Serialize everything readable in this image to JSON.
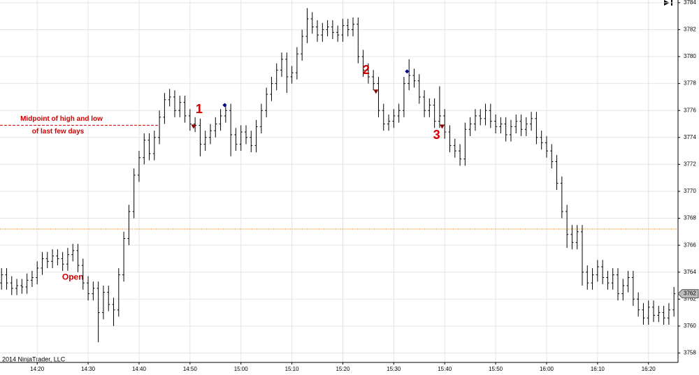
{
  "chart_data": {
    "type": "ohlc",
    "copyright": "2014 NinjaTrader, LLC",
    "color": "#000000",
    "x": [
      853,
      854,
      855,
      856,
      857,
      858,
      859,
      860,
      861,
      862,
      863,
      864,
      865,
      866,
      867,
      868,
      869,
      870,
      871,
      872,
      873,
      874,
      875,
      876,
      877,
      878,
      879,
      880,
      881,
      882,
      883,
      884,
      885,
      886,
      887,
      888,
      889,
      890,
      891,
      892,
      893,
      894,
      895,
      896,
      897,
      898,
      899,
      900,
      901,
      902,
      903,
      904,
      905,
      906,
      907,
      908,
      909,
      910,
      911,
      912,
      913,
      914,
      915,
      916,
      917,
      918,
      919,
      920,
      921,
      922,
      923,
      924,
      925,
      926,
      927,
      928,
      929,
      930,
      931,
      932,
      933,
      934,
      935,
      936,
      937,
      938,
      939,
      940,
      941,
      942,
      943,
      944,
      945,
      946,
      947,
      948,
      949,
      950,
      951,
      952,
      953,
      954,
      955,
      956,
      957,
      958,
      959,
      960,
      961,
      962,
      963,
      964,
      965,
      966,
      967,
      968,
      969,
      970,
      971,
      972,
      973,
      974,
      975,
      976,
      977,
      978,
      979,
      980,
      981,
      982,
      983,
      984,
      985
    ],
    "open": [
      3763.2,
      3763.8,
      3763.2,
      3762.8,
      3763,
      3762.9,
      3763.4,
      3763.6,
      3764.3,
      3765,
      3764.8,
      3765.2,
      3765,
      3764.6,
      3765.3,
      3765.6,
      3764.5,
      3763.2,
      3762.4,
      3762.8,
      3761,
      3762.5,
      3761.6,
      3761.2,
      3763.8,
      3766.5,
      3768.5,
      3771.2,
      3772.5,
      3773.8,
      3772.8,
      3774,
      3775.5,
      3776.8,
      3777,
      3776,
      3776.6,
      3775.6,
      3775,
      3774.9,
      3773.5,
      3774,
      3774.5,
      3775,
      3775.6,
      3776,
      3774.2,
      3773.5,
      3774.4,
      3774,
      3773.4,
      3774.8,
      3776,
      3777.2,
      3778,
      3779,
      3779.8,
      3778.5,
      3778.8,
      3780.2,
      3781.5,
      3782.8,
      3782.2,
      3781.6,
      3782,
      3782.2,
      3781.8,
      3781.6,
      3782.3,
      3782,
      3782.4,
      3780,
      3779,
      3778.5,
      3778,
      3776,
      3775,
      3775.2,
      3775.6,
      3776,
      3778,
      3778.6,
      3778.2,
      3777,
      3776,
      3776.4,
      3775.2,
      3775.6,
      3774.4,
      3773.4,
      3773,
      3772.4,
      3774.6,
      3775,
      3775.6,
      3775.4,
      3776,
      3775.2,
      3774.8,
      3775,
      3774.2,
      3774.8,
      3775.2,
      3774.6,
      3775,
      3775.4,
      3774,
      3773.6,
      3773,
      3772.2,
      3770.6,
      3768.5,
      3766.8,
      3766.2,
      3767,
      3764,
      3763.2,
      3763.8,
      3764.4,
      3763.6,
      3763.2,
      3763.8,
      3762.4,
      3763,
      3763.6,
      3762,
      3761.2,
      3760.6,
      3761.4,
      3760.8,
      3761,
      3760.6,
      3761.2
    ],
    "high": [
      3764.3,
      3764.3,
      3763.7,
      3763.5,
      3763.5,
      3763.9,
      3764.1,
      3764.8,
      3765.5,
      3765.5,
      3765.7,
      3765.7,
      3765.5,
      3765.8,
      3766.1,
      3766.1,
      3765,
      3763.7,
      3763.3,
      3763.3,
      3763,
      3763,
      3762.1,
      3764.3,
      3767,
      3769,
      3771.7,
      3773,
      3774.3,
      3774.3,
      3774.5,
      3776,
      3777.3,
      3777.6,
      3777.5,
      3777.1,
      3777.1,
      3776.1,
      3775.5,
      3775.4,
      3774.5,
      3775,
      3775.5,
      3776.1,
      3776.5,
      3776.5,
      3774.7,
      3774.9,
      3774.9,
      3774.5,
      3775.3,
      3776.5,
      3777.7,
      3778.5,
      3779.5,
      3780.3,
      3780.3,
      3779.3,
      3780.7,
      3782,
      3783.6,
      3783.3,
      3782.7,
      3782.5,
      3782.7,
      3782.7,
      3782.3,
      3782.8,
      3782.8,
      3782.9,
      3782.9,
      3780.5,
      3779.5,
      3779,
      3778.5,
      3776.5,
      3775.7,
      3776.1,
      3776.5,
      3778.5,
      3779.8,
      3779.1,
      3778.7,
      3777.5,
      3776.9,
      3776.9,
      3777.8,
      3776.1,
      3774.9,
      3773.9,
      3773.5,
      3775.1,
      3775.5,
      3776.1,
      3776.1,
      3776.5,
      3776.5,
      3775.7,
      3775.5,
      3775.5,
      3775.3,
      3775.7,
      3775.7,
      3775.5,
      3775.9,
      3775.9,
      3774.5,
      3774.1,
      3773.5,
      3772.7,
      3771.1,
      3769,
      3767.5,
      3767.5,
      3767.5,
      3764.5,
      3764.3,
      3764.9,
      3764.9,
      3764.1,
      3764.3,
      3764.3,
      3763.5,
      3764.1,
      3764.1,
      3762.5,
      3761.7,
      3761.9,
      3761.9,
      3761.5,
      3761.5,
      3761.7,
      3762.9
    ],
    "low": [
      3762.7,
      3762.7,
      3762.3,
      3762.3,
      3762.4,
      3762.4,
      3762.9,
      3763.1,
      3763.8,
      3764.3,
      3764.3,
      3764.5,
      3764.1,
      3764.1,
      3764.8,
      3764,
      3762.7,
      3761.9,
      3761.9,
      3758.8,
      3760.5,
      3761.1,
      3760,
      3760.7,
      3763.3,
      3766,
      3768,
      3770.7,
      3772,
      3772.3,
      3772.3,
      3773.5,
      3775,
      3776.3,
      3775.5,
      3775.5,
      3775.1,
      3774.5,
      3774.4,
      3772.6,
      3773,
      3773.5,
      3774,
      3774.5,
      3775.1,
      3772.6,
      3773,
      3773,
      3773.5,
      3772.9,
      3772.9,
      3774.3,
      3775.5,
      3776.7,
      3777.5,
      3778.5,
      3777.3,
      3778,
      3778.3,
      3779.7,
      3781,
      3781.7,
      3781.1,
      3781.1,
      3781.5,
      3781.3,
      3781.1,
      3781.1,
      3781.5,
      3781.5,
      3779.5,
      3778.5,
      3778,
      3777.5,
      3775.5,
      3774.5,
      3774.5,
      3774.7,
      3775.1,
      3775.5,
      3777.5,
      3777.7,
      3776.5,
      3775.5,
      3775.5,
      3774.7,
      3774.7,
      3773.9,
      3772.9,
      3772.5,
      3771.9,
      3771.9,
      3774.1,
      3774.5,
      3774.9,
      3774.9,
      3774.7,
      3774.3,
      3774.3,
      3773.7,
      3773.7,
      3774.3,
      3774.1,
      3774.1,
      3774.5,
      3773.5,
      3773.1,
      3772.5,
      3771.7,
      3770.1,
      3768,
      3765.8,
      3765.7,
      3765.7,
      3763,
      3762.7,
      3762.7,
      3763.3,
      3763.1,
      3762.7,
      3762.7,
      3761.9,
      3761.9,
      3762.5,
      3761.5,
      3760.7,
      3760.1,
      3760.1,
      3760.3,
      3760.3,
      3760.1,
      3760.1,
      3760.7
    ],
    "close": [
      3763.8,
      3763.2,
      3762.8,
      3763,
      3762.9,
      3763.4,
      3763.6,
      3764.3,
      3765,
      3764.8,
      3765.2,
      3765,
      3764.6,
      3765.3,
      3765.6,
      3764.5,
      3763.2,
      3762.4,
      3762.8,
      3761,
      3762.5,
      3761.6,
      3761.2,
      3763.8,
      3766.5,
      3768.5,
      3771.2,
      3772.5,
      3773.8,
      3772.8,
      3774,
      3775.5,
      3776.8,
      3777,
      3776,
      3776.6,
      3775.6,
      3775,
      3774.9,
      3773.5,
      3774,
      3774.5,
      3775,
      3775.6,
      3776,
      3774.2,
      3773.5,
      3774.4,
      3774,
      3773.4,
      3774.8,
      3776,
      3777.2,
      3778,
      3779,
      3779.8,
      3778.5,
      3778.8,
      3780.2,
      3781.5,
      3782.8,
      3782.2,
      3781.6,
      3782,
      3782.2,
      3781.8,
      3781.6,
      3782.3,
      3782,
      3782.4,
      3780,
      3779,
      3778.5,
      3778,
      3776,
      3775,
      3775.2,
      3775.6,
      3776,
      3778,
      3778.6,
      3778.2,
      3777,
      3776,
      3776.4,
      3775.2,
      3775.6,
      3774.4,
      3773.4,
      3773,
      3772.4,
      3774.6,
      3775,
      3775.6,
      3775.4,
      3776,
      3775.2,
      3774.8,
      3775,
      3774.2,
      3774.8,
      3775.2,
      3774.6,
      3775,
      3775.4,
      3774,
      3773.6,
      3773,
      3772.2,
      3770.6,
      3768.5,
      3766.8,
      3766.2,
      3767,
      3764,
      3763.2,
      3763.8,
      3764.4,
      3763.6,
      3763.2,
      3763.8,
      3762.4,
      3763,
      3763.6,
      3762,
      3761.2,
      3760.6,
      3761.4,
      3760.8,
      3761,
      3760.6,
      3761.2,
      3762.4
    ],
    "xlim": [
      852.7,
      985.8
    ],
    "xticks": [
      {
        "value": 860,
        "label": "14:20"
      },
      {
        "value": 870,
        "label": "14:30"
      },
      {
        "value": 880,
        "label": "14:40"
      },
      {
        "value": 890,
        "label": "14:50"
      },
      {
        "value": 900,
        "label": "15:00"
      },
      {
        "value": 910,
        "label": "15:10"
      },
      {
        "value": 920,
        "label": "15:20"
      },
      {
        "value": 930,
        "label": "15:30"
      },
      {
        "value": 940,
        "label": "15:40"
      },
      {
        "value": 950,
        "label": "15:50"
      },
      {
        "value": 960,
        "label": "16:00"
      },
      {
        "value": 970,
        "label": "16:10"
      },
      {
        "value": 980,
        "label": "16:20"
      }
    ],
    "ylim": [
      3757.3,
      3784.2
    ],
    "yticks": [
      3758,
      3760,
      3762,
      3764,
      3766,
      3768,
      3770,
      3772,
      3774,
      3776,
      3778,
      3780,
      3782,
      3784
    ],
    "grid": true,
    "open_line": {
      "y": 3767.2,
      "color": "#f0a040",
      "label": "Open",
      "label_x": 867,
      "label_y": 3763.6
    },
    "midpoint_line": {
      "y": 3774.9,
      "color": "#d00000",
      "label_lines": [
        "Midpoint of high and low",
        "of last few days"
      ]
    },
    "signals": [
      {
        "label": "1",
        "x": 890.7,
        "y": 3774.8
      },
      {
        "label": "2",
        "x": 926.5,
        "y": 3777.4
      },
      {
        "label": "3",
        "x": 939.5,
        "y": 3774.8
      }
    ],
    "signal_color": "#8b0000",
    "dots": [
      {
        "x": 896.8,
        "y": 3776.4
      },
      {
        "x": 932.6,
        "y": 3778.9
      }
    ],
    "dot_color": "#00008b",
    "last_price": {
      "value": 3762.4,
      "label": "3762"
    }
  }
}
